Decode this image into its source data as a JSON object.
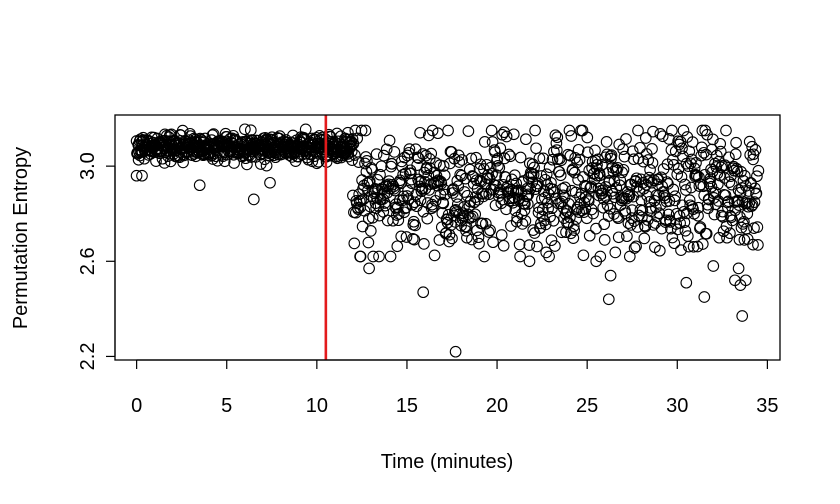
{
  "chart_data": {
    "type": "scatter",
    "title": "",
    "xlabel": "Time (minutes)",
    "ylabel": "Permutation Entropy",
    "xlim": [
      -1.2,
      35.7
    ],
    "ylim": [
      2.185,
      3.215
    ],
    "x_ticks": [
      0,
      5,
      10,
      15,
      20,
      25,
      30,
      35
    ],
    "y_ticks": [
      2.2,
      2.6,
      3.0
    ],
    "y_tick_labels": [
      "2.2",
      "2.6",
      "3.0"
    ],
    "marker": "open-circle",
    "marker_color": "#000000",
    "grid": false,
    "vline": {
      "x": 10.5,
      "color": "#e31a1c"
    },
    "phases": [
      {
        "x_start": 0.0,
        "x_end": 12.0,
        "mean": 3.08,
        "spread": 0.05,
        "n": 560
      },
      {
        "x_start": 12.0,
        "x_end": 34.5,
        "mean": 2.9,
        "spread": 0.16,
        "n": 840
      }
    ],
    "notable_points": [
      {
        "x": 0.0,
        "y": 2.96
      },
      {
        "x": 0.3,
        "y": 2.96
      },
      {
        "x": 3.5,
        "y": 2.92
      },
      {
        "x": 6.5,
        "y": 2.86
      },
      {
        "x": 7.4,
        "y": 2.93
      },
      {
        "x": 12.4,
        "y": 2.62
      },
      {
        "x": 12.9,
        "y": 2.57
      },
      {
        "x": 15.9,
        "y": 2.47
      },
      {
        "x": 17.7,
        "y": 2.22
      },
      {
        "x": 21.8,
        "y": 2.6
      },
      {
        "x": 25.5,
        "y": 2.6
      },
      {
        "x": 26.2,
        "y": 2.44
      },
      {
        "x": 26.3,
        "y": 2.54
      },
      {
        "x": 30.5,
        "y": 2.51
      },
      {
        "x": 31.5,
        "y": 2.45
      },
      {
        "x": 32.0,
        "y": 2.58
      },
      {
        "x": 33.2,
        "y": 2.52
      },
      {
        "x": 33.4,
        "y": 2.57
      },
      {
        "x": 33.5,
        "y": 2.5
      },
      {
        "x": 33.6,
        "y": 2.37
      },
      {
        "x": 33.8,
        "y": 2.52
      },
      {
        "x": 34.2,
        "y": 2.67
      }
    ]
  }
}
